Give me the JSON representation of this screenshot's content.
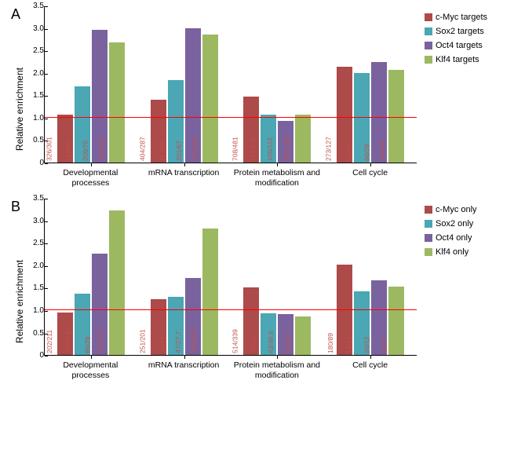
{
  "panels": [
    {
      "label": "A",
      "ylabel": "Relative enrichment",
      "ylim": [
        0,
        3.5
      ],
      "ytick_step": 0.5,
      "refline": 1.0,
      "series_colors": [
        "#ad4a4a",
        "#4aa7b3",
        "#7a629e",
        "#9cb962"
      ],
      "legend": [
        "c-Myc targets",
        "Sox2 targets",
        "Oct4 targets",
        "Klf4 targets"
      ],
      "categories": [
        "Developmental processes",
        "mRNA transcription",
        "Protein metabolism and modification",
        "Cell cycle"
      ],
      "groups": [
        {
          "values": [
            1.08,
            1.7,
            2.98,
            2.7
          ],
          "bar_labels": [
            "326/301",
            "112/66",
            "209/70",
            "310/115"
          ]
        },
        {
          "values": [
            1.41,
            1.85,
            3.0,
            2.87
          ],
          "bar_labels": [
            "404/287",
            "117/63",
            "201/67",
            "316/110"
          ]
        },
        {
          "values": [
            1.47,
            1.07,
            0.94,
            1.08
          ],
          "bar_labels": [
            "708/481",
            "113/106",
            "105/112",
            "200/185"
          ]
        },
        {
          "values": [
            2.15,
            2.0,
            2.25,
            2.08
          ],
          "bar_labels": [
            "273/127",
            "56/28",
            "66/29",
            "102/49"
          ]
        }
      ]
    },
    {
      "label": "B",
      "ylabel": "Relative enrichment",
      "ylim": [
        0,
        3.5
      ],
      "ytick_step": 0.5,
      "refline": 1.0,
      "series_colors": [
        "#ad4a4a",
        "#4aa7b3",
        "#7a629e",
        "#9cb962"
      ],
      "legend": [
        "c-Myc only",
        "Sox2 only",
        "Oct4 only",
        "Klf4 only"
      ],
      "categories": [
        "Developmental processes",
        "mRNA transcription",
        "Protein metabolism and modification",
        "Cell cycle"
      ],
      "groups": [
        {
          "values": [
            0.96,
            1.37,
            2.28,
            3.24
          ],
          "bar_labels": [
            "202/211",
            "39/28.5",
            "66/29",
            "131/40.4"
          ]
        },
        {
          "values": [
            1.25,
            1.3,
            1.72,
            2.83
          ],
          "bar_labels": [
            "251/201",
            "35/27",
            "47/27.7",
            "109/38.5"
          ]
        },
        {
          "values": [
            1.52,
            0.93,
            0.92,
            0.86
          ],
          "bar_labels": [
            "514/339",
            "43/45.7",
            "43/46.6",
            "55/64.7"
          ]
        },
        {
          "values": [
            2.02,
            1.42,
            1.67,
            1.53
          ],
          "bar_labels": [
            "180/89",
            "17/12",
            "20/12",
            "26/17"
          ]
        }
      ]
    }
  ],
  "label_color": "#c0504d",
  "background": "#ffffff"
}
